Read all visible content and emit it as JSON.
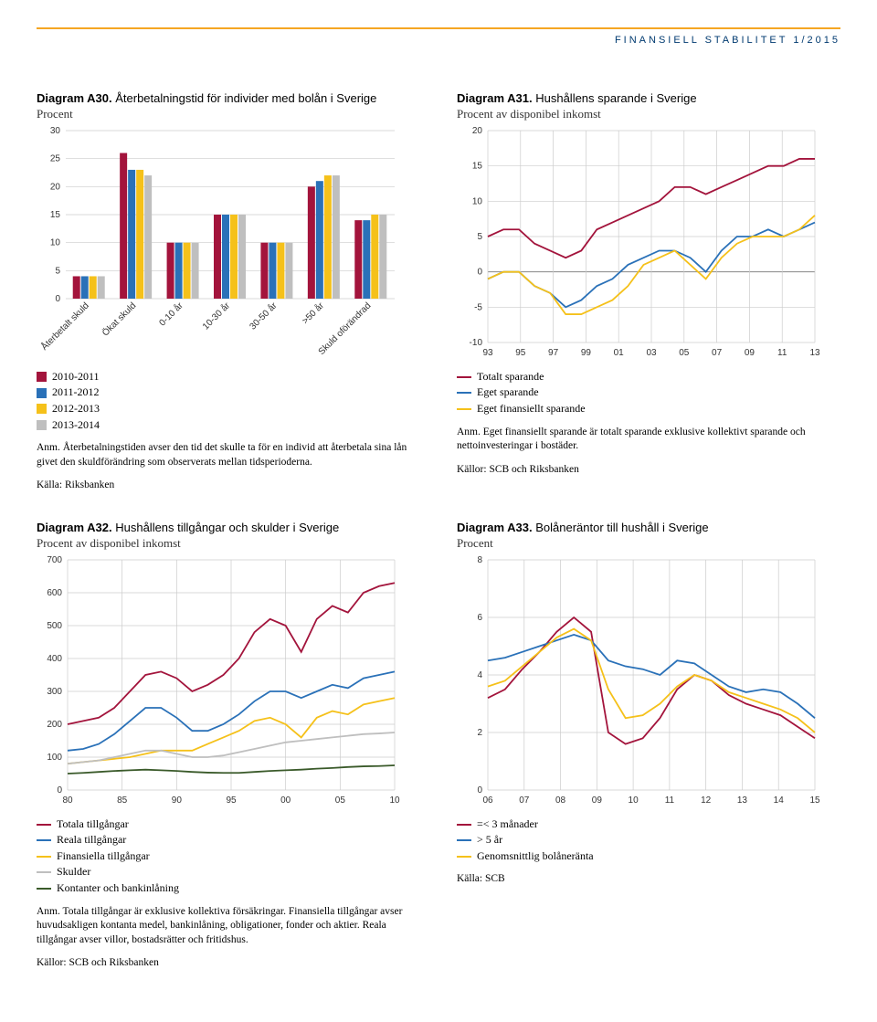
{
  "header": "FINANSIELL STABILITET 1/2015",
  "a30": {
    "type": "bar",
    "title_bold": "Diagram A30.",
    "title_rest": " Återbetalningstid för individer med bolån i Sverige",
    "subtitle": "Procent",
    "categories": [
      "Återbetalt skuld",
      "Ökat skuld",
      "0-10 år",
      "10-30 år",
      "30-50 år",
      ">50 år",
      "Skuld oförändrad"
    ],
    "series": [
      {
        "name": "2010-2011",
        "color": "#a3143c",
        "values": [
          4,
          26,
          10,
          15,
          10,
          20,
          14
        ]
      },
      {
        "name": "2011-2012",
        "color": "#2a71b8",
        "values": [
          4,
          23,
          10,
          15,
          10,
          21,
          14
        ]
      },
      {
        "name": "2012-2013",
        "color": "#f5c11a",
        "values": [
          4,
          23,
          10,
          15,
          10,
          22,
          15
        ]
      },
      {
        "name": "2013-2014",
        "color": "#bfbfbf",
        "values": [
          4,
          22,
          10,
          15,
          10,
          22,
          15
        ]
      }
    ],
    "ylim": [
      0,
      30
    ],
    "ystep": 5,
    "grid_color": "#d9d9d9",
    "note": "Anm. Återbetalningstiden avser den tid det skulle ta för en individ att återbetala sina lån givet den skuldförändring som observerats mellan tidsperioderna.",
    "source": "Källa: Riksbanken"
  },
  "a31": {
    "type": "line",
    "title_bold": "Diagram A31.",
    "title_rest": " Hushållens sparande i Sverige",
    "subtitle": "Procent av disponibel inkomst",
    "xvals": [
      "93",
      "95",
      "97",
      "99",
      "01",
      "03",
      "05",
      "07",
      "09",
      "11",
      "13"
    ],
    "ylim": [
      -10,
      20
    ],
    "ystep": 5,
    "grid_color": "#d9d9d9",
    "series": [
      {
        "name": "Totalt sparande",
        "color": "#a3143c",
        "data": [
          5,
          6,
          6,
          4,
          3,
          2,
          3,
          6,
          7,
          8,
          9,
          10,
          12,
          12,
          11,
          12,
          13,
          14,
          15,
          15,
          16,
          16
        ]
      },
      {
        "name": "Eget sparande",
        "color": "#2a71b8",
        "data": [
          -1,
          0,
          0,
          -2,
          -3,
          -5,
          -4,
          -2,
          -1,
          1,
          2,
          3,
          3,
          2,
          0,
          3,
          5,
          5,
          6,
          5,
          6,
          7
        ]
      },
      {
        "name": "Eget finansiellt sparande",
        "color": "#f5c11a",
        "data": [
          -1,
          0,
          0,
          -2,
          -3,
          -6,
          -6,
          -5,
          -4,
          -2,
          1,
          2,
          3,
          1,
          -1,
          2,
          4,
          5,
          5,
          5,
          6,
          8
        ]
      }
    ],
    "note": "Anm. Eget finansiellt sparande är totalt sparande exklusive kollektivt sparande och nettoinvesteringar i bostäder.",
    "source": "Källor: SCB och Riksbanken"
  },
  "a32": {
    "type": "line",
    "title_bold": "Diagram A32.",
    "title_rest": " Hushållens tillgångar och skulder i Sverige",
    "subtitle": "Procent av disponibel inkomst",
    "xvals": [
      "80",
      "85",
      "90",
      "95",
      "00",
      "05",
      "10"
    ],
    "ylim": [
      0,
      700
    ],
    "ystep": 100,
    "grid_color": "#d9d9d9",
    "series": [
      {
        "name": "Totala tillgångar",
        "color": "#a3143c",
        "data": [
          200,
          210,
          220,
          250,
          300,
          350,
          360,
          340,
          300,
          320,
          350,
          400,
          480,
          520,
          500,
          420,
          520,
          560,
          540,
          600,
          620,
          630
        ]
      },
      {
        "name": "Reala tillgångar",
        "color": "#2a71b8",
        "data": [
          120,
          125,
          140,
          170,
          210,
          250,
          250,
          220,
          180,
          180,
          200,
          230,
          270,
          300,
          300,
          280,
          300,
          320,
          310,
          340,
          350,
          360
        ]
      },
      {
        "name": "Finansiella tillgångar",
        "color": "#f5c11a",
        "data": [
          80,
          85,
          90,
          95,
          100,
          110,
          120,
          120,
          120,
          140,
          160,
          180,
          210,
          220,
          200,
          160,
          220,
          240,
          230,
          260,
          270,
          280
        ]
      },
      {
        "name": "Skulder",
        "color": "#bfbfbf",
        "data": [
          80,
          85,
          90,
          100,
          110,
          120,
          120,
          110,
          100,
          100,
          105,
          115,
          125,
          135,
          145,
          150,
          155,
          160,
          165,
          170,
          172,
          175
        ]
      },
      {
        "name": "Kontanter och bankinlåning",
        "color": "#3a5a2a",
        "data": [
          50,
          52,
          55,
          58,
          60,
          62,
          60,
          58,
          55,
          53,
          52,
          52,
          55,
          58,
          60,
          62,
          65,
          67,
          70,
          72,
          73,
          75
        ]
      }
    ],
    "note": "Anm. Totala tillgångar är exklusive kollektiva försäkringar. Finansiella tillgångar avser huvudsakligen kontanta medel, bankinlåning, obligationer, fonder och aktier. Reala tillgångar avser villor, bostadsrätter och fritidshus.",
    "source": "Källor: SCB och Riksbanken"
  },
  "a33": {
    "type": "line",
    "title_bold": "Diagram A33.",
    "title_rest": " Bolåneräntor till hushåll i Sverige",
    "subtitle": "Procent",
    "xvals": [
      "06",
      "07",
      "08",
      "09",
      "10",
      "11",
      "12",
      "13",
      "14",
      "15"
    ],
    "ylim": [
      0,
      8
    ],
    "ystep": 2,
    "grid_color": "#d9d9d9",
    "series": [
      {
        "name": "=< 3 månader",
        "color": "#a3143c",
        "data": [
          3.2,
          3.5,
          4.2,
          4.8,
          5.5,
          6.0,
          5.5,
          2.0,
          1.6,
          1.8,
          2.5,
          3.5,
          4.0,
          3.8,
          3.3,
          3.0,
          2.8,
          2.6,
          2.2,
          1.8
        ]
      },
      {
        "name": "> 5 år",
        "color": "#2a71b8",
        "data": [
          4.5,
          4.6,
          4.8,
          5.0,
          5.2,
          5.4,
          5.2,
          4.5,
          4.3,
          4.2,
          4.0,
          4.5,
          4.4,
          4.0,
          3.6,
          3.4,
          3.5,
          3.4,
          3.0,
          2.5
        ]
      },
      {
        "name": "Genomsnittlig bolåneränta",
        "color": "#f5c11a",
        "data": [
          3.6,
          3.8,
          4.3,
          4.8,
          5.3,
          5.6,
          5.2,
          3.5,
          2.5,
          2.6,
          3.0,
          3.6,
          4.0,
          3.8,
          3.4,
          3.2,
          3.0,
          2.8,
          2.5,
          2.0
        ]
      }
    ],
    "source": "Källa: SCB"
  }
}
